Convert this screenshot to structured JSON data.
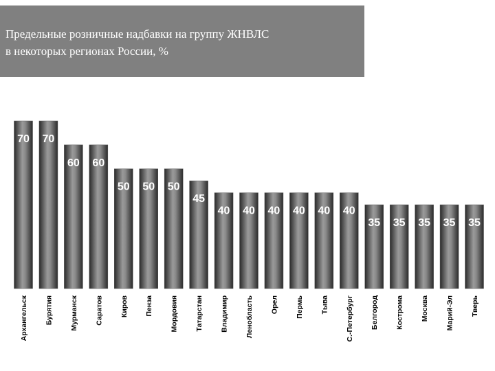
{
  "chart_data": {
    "type": "bar",
    "title": [
      "Предельные розничные надбавки на группу ЖНВЛС",
      "в некоторых регионах России, %"
    ],
    "categories": [
      "Архангельск",
      "Бурятия",
      "Мурманск",
      "Саратов",
      "Киров",
      "Пенза",
      "Мордовия",
      "Татарстан",
      "Владимир",
      "Ленобласть",
      "Орел",
      "Пермь",
      "Тыва",
      "С.-Петербург",
      "Белгород",
      "Кострома",
      "Москва",
      "Марий-Эл",
      "Тверь"
    ],
    "values": [
      70,
      70,
      60,
      60,
      50,
      50,
      50,
      45,
      40,
      40,
      40,
      40,
      40,
      40,
      35,
      35,
      35,
      35,
      35
    ],
    "color": "#5a5a5a"
  }
}
